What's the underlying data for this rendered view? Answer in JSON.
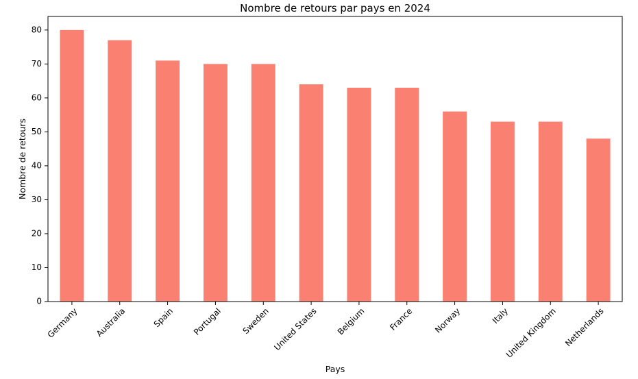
{
  "chart_data": {
    "type": "bar",
    "title": "Nombre de retours par pays en 2024",
    "xlabel": "Pays",
    "ylabel": "Nombre de retours",
    "categories": [
      "Germany",
      "Australia",
      "Spain",
      "Portugal",
      "Sweden",
      "United States",
      "Belgium",
      "France",
      "Norway",
      "Italy",
      "United Kingdom",
      "Netherlands"
    ],
    "values": [
      80,
      77,
      71,
      70,
      70,
      64,
      63,
      63,
      56,
      53,
      53,
      48
    ],
    "ylim": [
      0,
      84
    ],
    "yticks": [
      0,
      10,
      20,
      30,
      40,
      50,
      60,
      70,
      80
    ],
    "bar_color": "#fa8072",
    "grid": false,
    "legend": "none"
  }
}
